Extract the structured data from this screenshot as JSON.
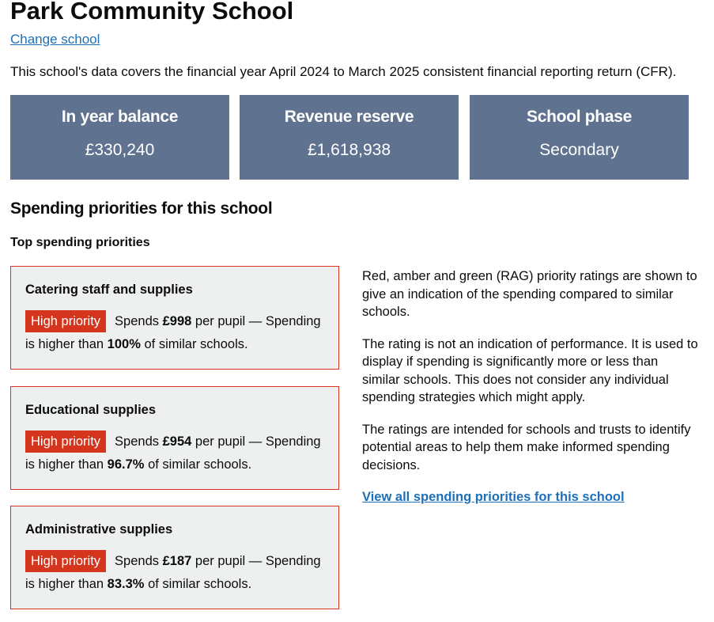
{
  "header": {
    "title": "Park Community School",
    "change_link": "Change school",
    "intro": "This school's data covers the financial year April 2024 to March 2025 consistent financial reporting return (CFR)."
  },
  "tiles": [
    {
      "title": "In year balance",
      "value": "£330,240"
    },
    {
      "title": "Revenue reserve",
      "value": "£1,618,938"
    },
    {
      "title": "School phase",
      "value": "Secondary"
    }
  ],
  "section": {
    "title": "Spending priorities for this school",
    "subtitle": "Top spending priorities"
  },
  "priorities": [
    {
      "name": "Catering staff and supplies",
      "tag": "High priority",
      "spends_prefix": "Spends",
      "amount": "£998",
      "mid": "per pupil — Spending is higher than",
      "percent": "100%",
      "suffix": "of similar schools."
    },
    {
      "name": "Educational supplies",
      "tag": "High priority",
      "spends_prefix": "Spends",
      "amount": "£954",
      "mid": "per pupil — Spending is higher than",
      "percent": "96.7%",
      "suffix": "of similar schools."
    },
    {
      "name": "Administrative supplies",
      "tag": "High priority",
      "spends_prefix": "Spends",
      "amount": "£187",
      "mid": "per pupil — Spending is higher than",
      "percent": "83.3%",
      "suffix": "of similar schools."
    }
  ],
  "info": {
    "p1": "Red, amber and green (RAG) priority ratings are shown to give an indication of the spending compared to similar schools.",
    "p2": "The rating is not an indication of performance. It is used to display if spending is significantly more or less than similar schools. This does not consider any individual spending strategies which might apply.",
    "p3": "The ratings are intended for schools and trusts to identify potential areas to help them make informed spending decisions.",
    "link": "View all spending priorities for this school"
  },
  "colors": {
    "tile": "#5f7290",
    "high_priority": "#d4351c",
    "link": "#1d70b8",
    "card_bg": "#eef0ef"
  }
}
